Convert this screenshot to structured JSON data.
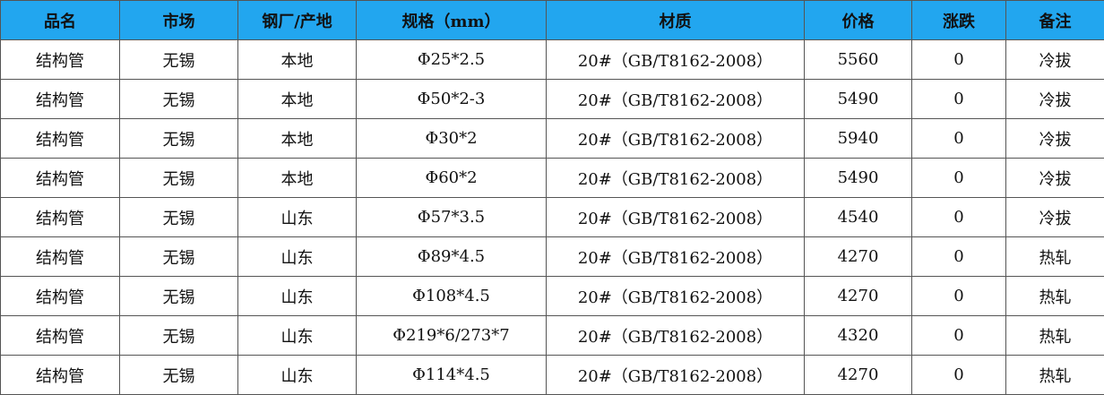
{
  "table": {
    "headers": [
      "品名",
      "市场",
      "钢厂/产地",
      "规格（mm）",
      "材质",
      "价格",
      "涨跌",
      "备注"
    ],
    "rows": [
      [
        "结构管",
        "无锡",
        "本地",
        "Φ25*2.5",
        "20#（GB/T8162-2008）",
        "5560",
        "0",
        "冷拔"
      ],
      [
        "结构管",
        "无锡",
        "本地",
        "Φ50*2-3",
        "20#（GB/T8162-2008）",
        "5490",
        "0",
        "冷拔"
      ],
      [
        "结构管",
        "无锡",
        "本地",
        "Φ30*2",
        "20#（GB/T8162-2008）",
        "5940",
        "0",
        "冷拔"
      ],
      [
        "结构管",
        "无锡",
        "本地",
        "Φ60*2",
        "20#（GB/T8162-2008）",
        "5490",
        "0",
        "冷拔"
      ],
      [
        "结构管",
        "无锡",
        "山东",
        "Φ57*3.5",
        "20#（GB/T8162-2008）",
        "4540",
        "0",
        "冷拔"
      ],
      [
        "结构管",
        "无锡",
        "山东",
        "Φ89*4.5",
        "20#（GB/T8162-2008）",
        "4270",
        "0",
        "热轧"
      ],
      [
        "结构管",
        "无锡",
        "山东",
        "Φ108*4.5",
        "20#（GB/T8162-2008）",
        "4270",
        "0",
        "热轧"
      ],
      [
        "结构管",
        "无锡",
        "山东",
        "Φ219*6/273*7",
        "20#（GB/T8162-2008）",
        "4320",
        "0",
        "热轧"
      ],
      [
        "结构管",
        "无锡",
        "山东",
        "Φ114*4.5",
        "20#（GB/T8162-2008）",
        "4270",
        "0",
        "热轧"
      ]
    ]
  }
}
